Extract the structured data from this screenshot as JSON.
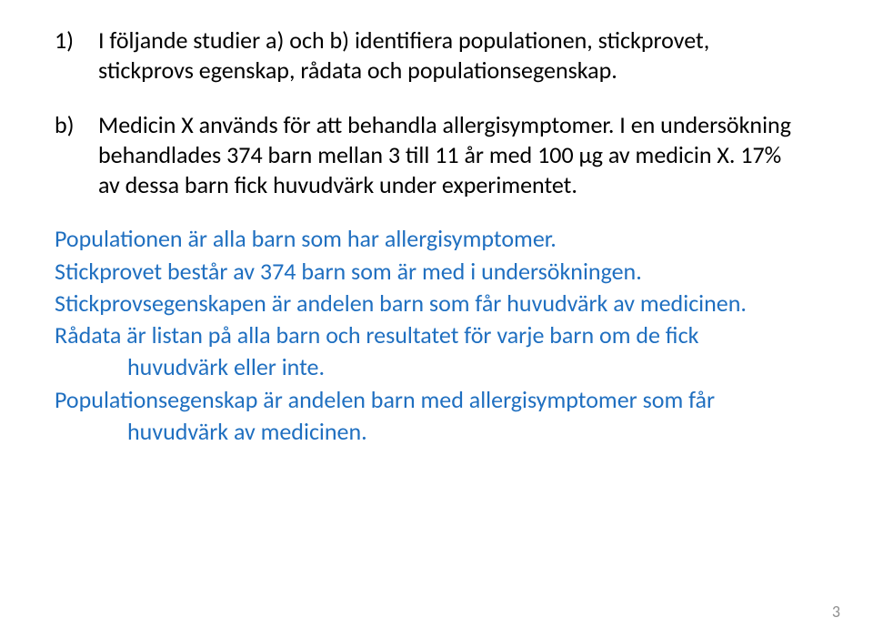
{
  "typography": {
    "body_font_family": "Calibri, 'Segoe UI', Arial, sans-serif",
    "body_font_size_pt": 20,
    "line_height": 1.28
  },
  "colors": {
    "background": "#ffffff",
    "text_black": "#000000",
    "answer_blue": "#1f6fc0",
    "page_number_gray": "#8f8f8f"
  },
  "question1": {
    "marker": "1)",
    "text_line1": "I följande studier a) och b) identifiera populationen, stickprovet,",
    "text_line2": "stickprovs egenskap, rådata och populationsegenskap."
  },
  "part_b": {
    "marker": "b)",
    "line1": "Medicin X används för att behandla allergisymptomer. I en undersökning",
    "line2": "behandlades 374 barn mellan 3 till 11 år med 100 μg av medicin X. 17%",
    "line3": "av dessa barn fick huvudvärk under experimentet."
  },
  "answers": {
    "a1": "Populationen är alla barn som har allergisymptomer.",
    "a2": "Stickprovet består av 374 barn som är med i undersökningen.",
    "a3": "Stickprovsegenskapen är andelen barn som får huvudvärk av medicinen.",
    "a4_line1": "Rådata är listan på alla barn och resultatet för varje barn om de fick",
    "a4_line2": "huvudvärk eller inte.",
    "a5_line1": "Populationsegenskap är andelen barn med allergisymptomer som får",
    "a5_line2": "huvudvärk av medicinen."
  },
  "page_number": "3"
}
